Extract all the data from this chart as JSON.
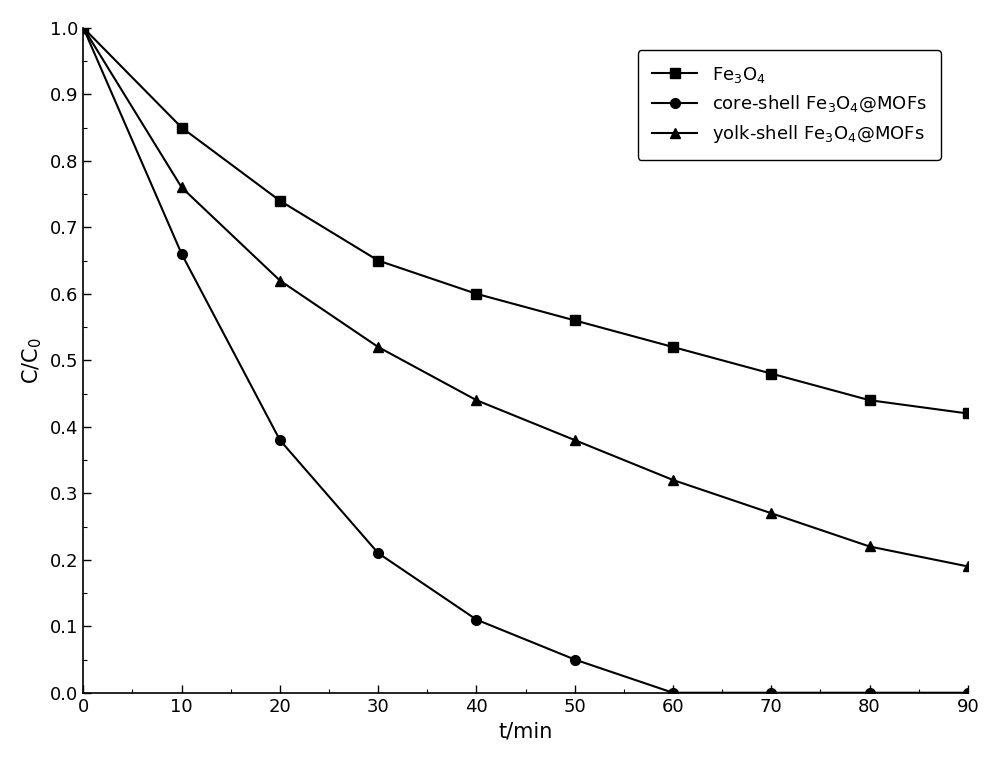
{
  "x": [
    0,
    10,
    20,
    30,
    40,
    50,
    60,
    70,
    80,
    90
  ],
  "fe3o4": [
    1.0,
    0.85,
    0.74,
    0.65,
    0.6,
    0.56,
    0.52,
    0.48,
    0.44,
    0.42
  ],
  "core_shell": [
    1.0,
    0.66,
    0.38,
    0.21,
    0.11,
    0.05,
    0.0,
    0.0,
    0.0,
    0.0
  ],
  "yolk_shell": [
    1.0,
    0.76,
    0.62,
    0.52,
    0.44,
    0.38,
    0.32,
    0.27,
    0.22,
    0.19
  ],
  "legend_fe3o4": "Fe$_3$O$_4$",
  "legend_core": "core-shell Fe$_3$O$_4$@MOFs",
  "legend_yolk": "yolk-shell Fe$_3$O$_4$@MOFs",
  "xlabel": "t/min",
  "ylabel": "C/C$_0$",
  "xlim": [
    0,
    90
  ],
  "ylim": [
    0.0,
    1.0
  ],
  "color": "#000000",
  "linewidth": 1.5,
  "markersize": 7,
  "legend_fontsize": 13,
  "axis_fontsize": 15,
  "tick_fontsize": 13,
  "background_color": "#ffffff"
}
